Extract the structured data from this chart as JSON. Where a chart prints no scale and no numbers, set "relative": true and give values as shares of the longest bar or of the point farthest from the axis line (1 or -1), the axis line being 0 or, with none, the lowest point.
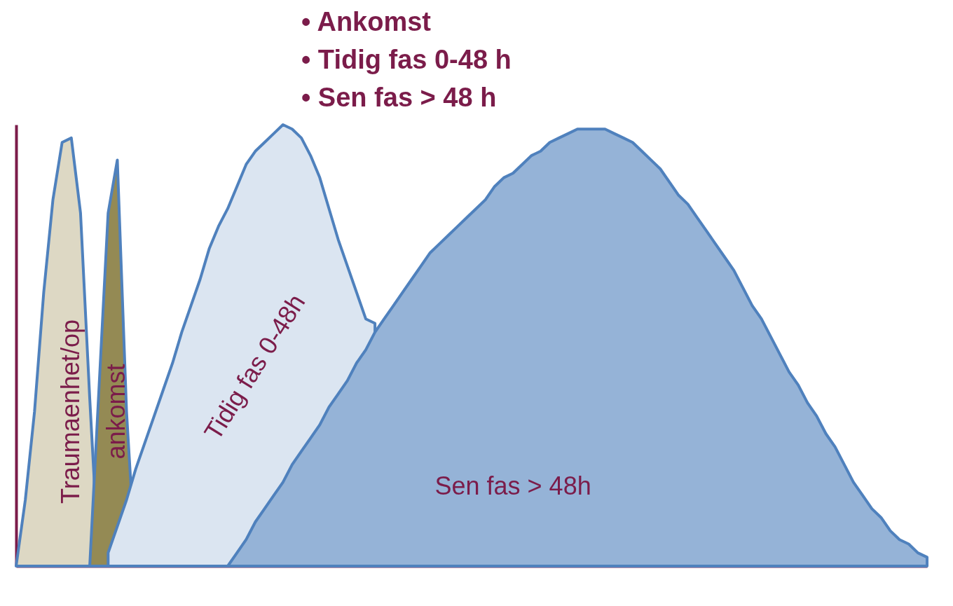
{
  "chart_data": {
    "type": "area",
    "relative": true,
    "annotations": [
      "• Ankomst",
      "• Tidig fas 0-48 h",
      "• Sen fas > 48 h"
    ],
    "categories": [
      null,
      null,
      null,
      null,
      null,
      null,
      null,
      null,
      null,
      null,
      null,
      null,
      null,
      null,
      null,
      null,
      null,
      null,
      null,
      null,
      null,
      null,
      null,
      null,
      null,
      null,
      null,
      null,
      null,
      null,
      null,
      null,
      null,
      null,
      null,
      null,
      null,
      null,
      null,
      null,
      null,
      null,
      null,
      null,
      null,
      null,
      null,
      null,
      null,
      null,
      null,
      null,
      null,
      null,
      null,
      null,
      null,
      null,
      null,
      null,
      null,
      null,
      null,
      null,
      null,
      null,
      null,
      null,
      null,
      null,
      null,
      null,
      null,
      null,
      null,
      null,
      null,
      null,
      null,
      null,
      null,
      null,
      null,
      null,
      null,
      null,
      null,
      null,
      null,
      null,
      null,
      null,
      null,
      null,
      null,
      null,
      null,
      null,
      null,
      null
    ],
    "series": [
      {
        "name": "Traumaenhet/op",
        "color": "#ddd8c4",
        "values": [
          0,
          0.15,
          0.35,
          0.62,
          0.83,
          0.96,
          0.97,
          0.8,
          0.38,
          0,
          null,
          null,
          null,
          null,
          null,
          null,
          null,
          null,
          null,
          null,
          null,
          null,
          null,
          null,
          null,
          null,
          null,
          null,
          null,
          null,
          null,
          null,
          null,
          null,
          null,
          null,
          null,
          null,
          null,
          null,
          null,
          null,
          null,
          null,
          null,
          null,
          null,
          null,
          null,
          null,
          null,
          null,
          null,
          null,
          null,
          null,
          null,
          null,
          null,
          null,
          null,
          null,
          null,
          null,
          null,
          null,
          null,
          null,
          null,
          null,
          null,
          null,
          null,
          null,
          null,
          null,
          null,
          null,
          null,
          null,
          null,
          null,
          null,
          null,
          null,
          null,
          null,
          null,
          null,
          null,
          null,
          null,
          null,
          null,
          null,
          null,
          null,
          null,
          null,
          null
        ]
      },
      {
        "name": "ankomst",
        "color": "#948a54",
        "values": [
          null,
          null,
          null,
          null,
          null,
          null,
          null,
          null,
          0,
          0.4,
          0.8,
          0.92,
          0.35,
          0,
          null,
          null,
          null,
          null,
          null,
          null,
          null,
          null,
          null,
          null,
          null,
          null,
          null,
          null,
          null,
          null,
          null,
          null,
          null,
          null,
          null,
          null,
          null,
          null,
          null,
          null,
          null,
          null,
          null,
          null,
          null,
          null,
          null,
          null,
          null,
          null,
          null,
          null,
          null,
          null,
          null,
          null,
          null,
          null,
          null,
          null,
          null,
          null,
          null,
          null,
          null,
          null,
          null,
          null,
          null,
          null,
          null,
          null,
          null,
          null,
          null,
          null,
          null,
          null,
          null,
          null,
          null,
          null,
          null,
          null,
          null,
          null,
          null,
          null,
          null,
          null,
          null,
          null,
          null,
          null,
          null,
          null,
          null,
          null,
          null,
          null
        ]
      },
      {
        "name": "Tidig fas 0-48h",
        "color": "#dbe5f1",
        "values": [
          null,
          null,
          null,
          null,
          null,
          null,
          null,
          null,
          null,
          null,
          0.03,
          0.09,
          0.15,
          0.22,
          0.28,
          0.34,
          0.4,
          0.46,
          0.53,
          0.59,
          0.65,
          0.72,
          0.77,
          0.81,
          0.86,
          0.91,
          0.94,
          0.96,
          0.98,
          1,
          0.99,
          0.97,
          0.93,
          0.88,
          0.81,
          0.74,
          0.68,
          0.62,
          0.56,
          0.55,
          null,
          null,
          null,
          null,
          null,
          null,
          null,
          null,
          null,
          null,
          null,
          null,
          null,
          null,
          null,
          null,
          null,
          null,
          null,
          null,
          null,
          null,
          null,
          null,
          null,
          null,
          null,
          null,
          null,
          null,
          null,
          null,
          null,
          null,
          null,
          null,
          null,
          null,
          null,
          null,
          null,
          null,
          null,
          null,
          null,
          null,
          null,
          null,
          null,
          null,
          null,
          null,
          null,
          null,
          null,
          null,
          null,
          null,
          null,
          null
        ]
      },
      {
        "name": "Sen fas  > 48h",
        "color": "#95b3d7",
        "values": [
          null,
          null,
          null,
          null,
          null,
          null,
          null,
          null,
          null,
          null,
          null,
          null,
          null,
          null,
          null,
          null,
          null,
          null,
          null,
          null,
          null,
          null,
          null,
          0,
          0.03,
          0.06,
          0.1,
          0.13,
          0.16,
          0.19,
          0.23,
          0.26,
          0.29,
          0.32,
          0.36,
          0.39,
          0.42,
          0.46,
          0.49,
          0.53,
          0.56,
          0.59,
          0.62,
          0.65,
          0.68,
          0.71,
          0.73,
          0.75,
          0.77,
          0.79,
          0.81,
          0.83,
          0.86,
          0.88,
          0.89,
          0.91,
          0.93,
          0.94,
          0.96,
          0.97,
          0.98,
          0.99,
          0.99,
          0.99,
          0.99,
          0.98,
          0.97,
          0.96,
          0.94,
          0.92,
          0.9,
          0.87,
          0.84,
          0.82,
          0.79,
          0.76,
          0.73,
          0.7,
          0.67,
          0.63,
          0.59,
          0.56,
          0.52,
          0.48,
          0.44,
          0.41,
          0.37,
          0.34,
          0.3,
          0.27,
          0.23,
          0.19,
          0.16,
          0.13,
          0.11,
          0.08,
          0.06,
          0.05,
          0.03,
          0.02
        ]
      }
    ]
  }
}
